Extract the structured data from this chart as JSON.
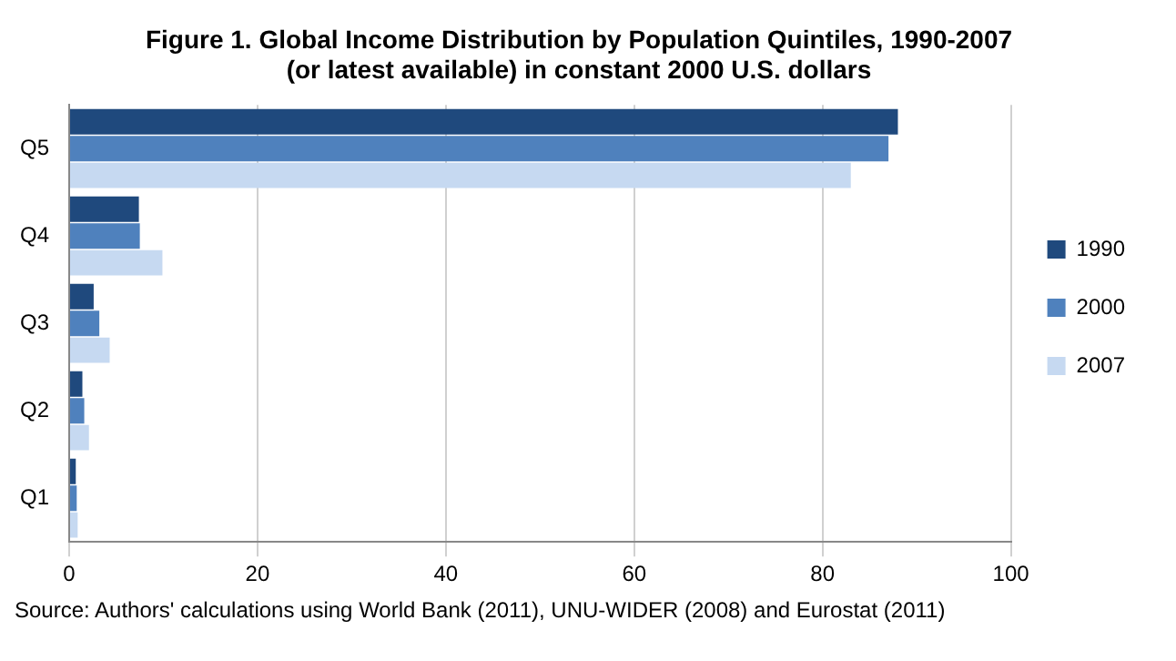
{
  "chart_data": {
    "type": "bar",
    "orientation": "horizontal",
    "title": "Figure 1. Global Income Distribution by Population Quintiles, 1990-2007\n(or latest available) in constant 2000 U.S. dollars",
    "categories": [
      "Q5",
      "Q4",
      "Q3",
      "Q2",
      "Q1"
    ],
    "series": [
      {
        "name": "1990",
        "color": "#1f497d",
        "values": [
          88,
          7.4,
          2.6,
          1.4,
          0.7
        ]
      },
      {
        "name": "2000",
        "color": "#4f81bd",
        "values": [
          87,
          7.5,
          3.2,
          1.6,
          0.8
        ]
      },
      {
        "name": "2007",
        "color": "#c6d9f1",
        "values": [
          83,
          9.9,
          4.3,
          2.1,
          0.9
        ]
      }
    ],
    "xlim": [
      0,
      100
    ],
    "xticks": [
      0,
      20,
      40,
      60,
      80,
      100
    ],
    "grid": "x",
    "legend": "right",
    "annotations": [
      "Source: Authors' calculations using World Bank (2011), UNU-WIDER (2008) and Eurostat (2011)"
    ]
  }
}
